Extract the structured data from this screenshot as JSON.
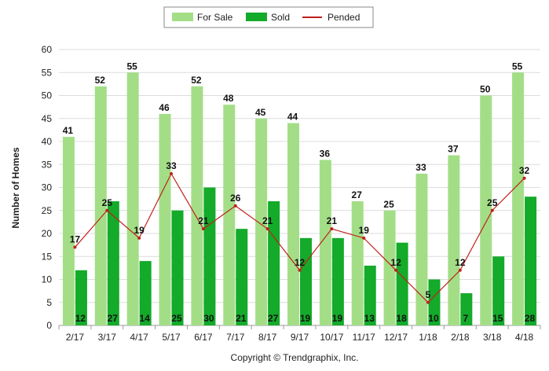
{
  "colors": {
    "for_sale": "#a3de87",
    "sold": "#14aa2a",
    "pended": "#c0201b",
    "grid": "#dcdcdc",
    "axis": "#9a9a9a"
  },
  "footer": {
    "copyright": "Copyright © Trendgraphix, Inc."
  },
  "chart_data": {
    "type": "bar",
    "title": "",
    "xlabel": "",
    "ylabel": "Number of Homes",
    "ylim": [
      0,
      60
    ],
    "yticks": [
      0,
      5,
      10,
      15,
      20,
      25,
      30,
      35,
      40,
      45,
      50,
      55,
      60
    ],
    "grid": "horizontal",
    "legend_position": "top-center",
    "categories": [
      "2/17",
      "3/17",
      "4/17",
      "5/17",
      "6/17",
      "7/17",
      "8/17",
      "9/17",
      "10/17",
      "11/17",
      "12/17",
      "1/18",
      "2/18",
      "3/18",
      "4/18"
    ],
    "series": [
      {
        "name": "For Sale",
        "type": "bar",
        "values": [
          41,
          52,
          55,
          46,
          52,
          48,
          45,
          44,
          36,
          27,
          25,
          33,
          37,
          50,
          55
        ]
      },
      {
        "name": "Sold",
        "type": "bar",
        "values": [
          12,
          27,
          14,
          25,
          30,
          21,
          27,
          19,
          19,
          13,
          18,
          10,
          7,
          15,
          28
        ]
      },
      {
        "name": "Pended",
        "type": "line",
        "values": [
          17,
          25,
          19,
          33,
          21,
          26,
          21,
          12,
          21,
          19,
          12,
          5,
          12,
          25,
          32
        ]
      }
    ]
  }
}
